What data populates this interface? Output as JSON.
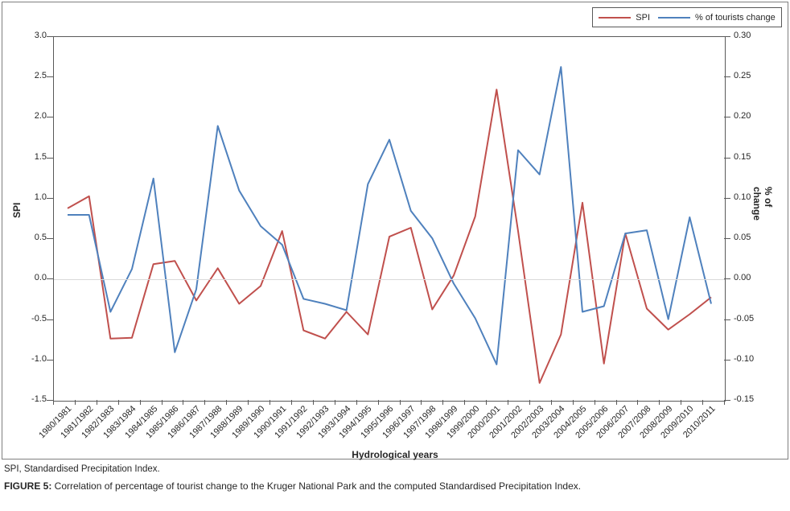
{
  "legend": {
    "spi_label": "SPI",
    "tourists_label": "% of tourists change"
  },
  "axes": {
    "left_title": "SPI",
    "right_title": "% of change",
    "x_title": "Hydrological years",
    "left_ticks": [
      "3.0",
      "2.5",
      "2.0",
      "1.5",
      "1.0",
      "0.5",
      "0.0",
      "-0.5",
      "-1.0",
      "-1.5"
    ],
    "right_ticks": [
      "0.30",
      "0.25",
      "0.20",
      "0.15",
      "0.10",
      "0.05",
      "0.00",
      "-0.05",
      "-0.10",
      "-0.15"
    ]
  },
  "chart_data": {
    "type": "line",
    "title": "",
    "xlabel": "Hydrological years",
    "ylabel_left": "SPI",
    "ylabel_right": "% of change",
    "left_ylim": [
      -1.5,
      3.0
    ],
    "right_ylim": [
      -0.15,
      0.3
    ],
    "grid": "zero-line-only",
    "legend_position": "top-right",
    "categories": [
      "1980/1981",
      "1981/1982",
      "1982/1983",
      "1983/1984",
      "1984/1985",
      "1985/1986",
      "1986/1987",
      "1987/1988",
      "1988/1989",
      "1989/1990",
      "1990/1991",
      "1991/1992",
      "1992/1993",
      "1993/1994",
      "1994/1995",
      "1995/1996",
      "1996/1997",
      "1997/1998",
      "1998/1999",
      "1999/2000",
      "2000/2001",
      "2001/2002",
      "2002/2003",
      "2003/2004",
      "2004/2005",
      "2005/2006",
      "2006/2007",
      "2007/2008",
      "2008/2009",
      "2009/2010",
      "2010/2011"
    ],
    "series": [
      {
        "name": "SPI",
        "axis": "left",
        "color": "#c0504d",
        "values": [
          0.88,
          1.03,
          -0.73,
          -0.72,
          0.19,
          0.23,
          -0.26,
          0.14,
          -0.3,
          -0.08,
          0.6,
          -0.63,
          -0.73,
          -0.4,
          -0.68,
          0.53,
          0.64,
          -0.37,
          0.05,
          0.78,
          2.35,
          0.6,
          -1.28,
          -0.68,
          0.95,
          -1.04,
          0.57,
          -0.36,
          -0.62,
          -0.43,
          -0.22
        ]
      },
      {
        "name": "% of tourists change",
        "axis": "right",
        "color": "#4f81bd",
        "values": [
          0.08,
          0.08,
          -0.04,
          0.013,
          0.125,
          -0.09,
          -0.012,
          0.19,
          0.11,
          0.066,
          0.043,
          -0.024,
          -0.03,
          -0.038,
          0.118,
          0.173,
          0.085,
          0.051,
          -0.005,
          -0.048,
          -0.105,
          0.16,
          0.13,
          0.263,
          -0.04,
          -0.033,
          0.057,
          0.061,
          -0.049,
          0.077,
          -0.03
        ]
      }
    ]
  },
  "caption": {
    "note": "SPI, Standardised Precipitation Index.",
    "figure_label": "FIGURE 5:",
    "figure_text": " Correlation of percentage of tourist change to the Kruger National Park and the computed Standardised Precipitation Index."
  },
  "colors": {
    "spi_line": "#c0504d",
    "tourists_line": "#4f81bd",
    "zero_gridline": "#d9d9d9",
    "axis": "#595959",
    "text": "#262626"
  }
}
